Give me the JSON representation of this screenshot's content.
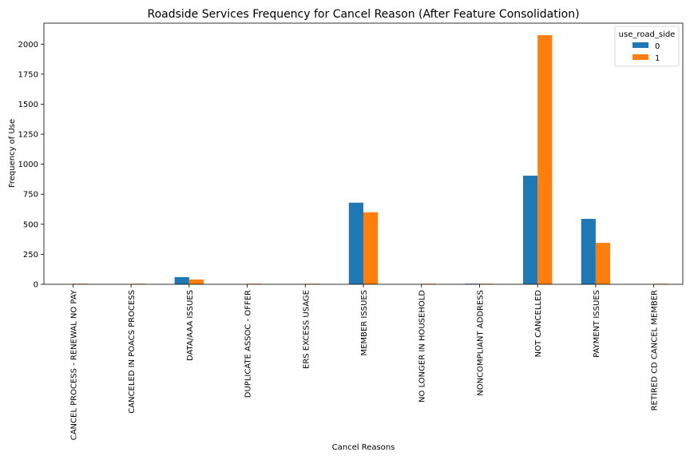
{
  "chart_data": {
    "type": "bar",
    "title": "Roadside Services Frequency for Cancel Reason (After Feature Consolidation)",
    "xlabel": "Cancel Reasons",
    "ylabel": "Frequency of Use",
    "ylim": [
      0,
      2175
    ],
    "yticks": [
      0,
      250,
      500,
      750,
      1000,
      1250,
      1500,
      1750,
      2000
    ],
    "grid": false,
    "legend_title": "use_road_side",
    "legend_position": "top-right",
    "categories": [
      "CANCEL PROCESS - RENEWAL NO PAY",
      "CANCELED IN POACS PROCESS",
      "DATA/AAA ISSUES",
      "DUPLICATE ASSOC - OFFER",
      "ERS EXCESS USAGE",
      "MEMBER ISSUES",
      "NO LONGER IN HOUSEHOLD",
      "NONCOMPLIANT ADDRESS",
      "NOT CANCELLED",
      "PAYMENT ISSUES",
      "RETIRED CD CANCEL MEMBER"
    ],
    "series": [
      {
        "name": "0",
        "color": "#1f77b4",
        "values": [
          0,
          0,
          60,
          0,
          0,
          680,
          0,
          5,
          905,
          545,
          0
        ]
      },
      {
        "name": "1",
        "color": "#ff7f0e",
        "values": [
          5,
          5,
          40,
          5,
          5,
          600,
          5,
          5,
          2075,
          345,
          5
        ]
      }
    ]
  }
}
